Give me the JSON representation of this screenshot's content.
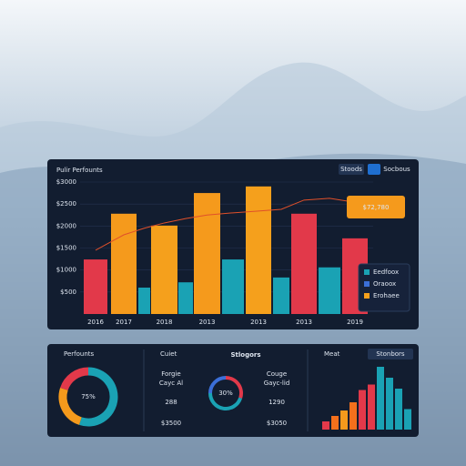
{
  "header": {
    "title": "Pulir Perfounts",
    "buttons": [
      "Stoods",
      "Socbous"
    ]
  },
  "chart_data": [
    {
      "type": "bar",
      "categories": [
        "2016",
        "2017",
        null,
        "2018",
        null,
        "2013",
        null,
        "2013",
        null,
        "2013",
        null,
        "2019"
      ],
      "values": [
        1240,
        2280,
        600,
        2010,
        720,
        2750,
        1240,
        2900,
        830,
        2280,
        1060,
        1720
      ],
      "colors": [
        "#e2394a",
        "#f59a1c",
        "#1aa2b4",
        "#f5a01c",
        "#1aa2b4",
        "#f59a1c",
        "#1aa2b4",
        "#f5a01c",
        "#1aa2b4",
        "#e2394a",
        "#1aa2b4",
        "#e2394a"
      ],
      "ylim": [
        0,
        3000
      ],
      "yticks": [
        {
          "value": 500,
          "label": "$500"
        },
        {
          "value": 1000,
          "label": "$1000"
        },
        {
          "value": 1500,
          "label": "$1500"
        },
        {
          "value": 2000,
          "label": "$2000"
        },
        {
          "value": 2500,
          "label": "$2500"
        },
        {
          "value": 3000,
          "label": "$3000"
        }
      ],
      "grid": true,
      "line": {
        "color": "#e0502a",
        "values": [
          1450,
          1800,
          1950,
          2070,
          2170,
          2250,
          2300,
          2340,
          2380,
          2590,
          2630,
          2540
        ]
      },
      "annotation": "$72,780",
      "legend": [
        {
          "name": "Eedfoox",
          "color": "#1aa2b4"
        },
        {
          "name": "Oraoox",
          "color": "#3b6fd8"
        },
        {
          "name": "Erohaee",
          "color": "#f5a01c"
        }
      ]
    },
    {
      "type": "pie",
      "title": "Perfounts",
      "values": [
        55,
        25,
        20
      ],
      "colors": [
        "#1aa2b4",
        "#f59a1c",
        "#e2394a"
      ],
      "center_label": "75%"
    },
    {
      "type": "pie",
      "title": "Cuiet",
      "values": [
        30,
        45,
        25
      ],
      "colors": [
        "#e2394a",
        "#1aa2b4",
        "#3b6fd8"
      ],
      "center_label": "30%"
    },
    {
      "type": "bar",
      "title": "Meat",
      "button": "Stonbors",
      "values": [
        12,
        20,
        28,
        40,
        58,
        66,
        92,
        76,
        60,
        30
      ],
      "colors": [
        "#e2394a",
        "#f5701c",
        "#f59a1c",
        "#f5701c",
        "#e2394a",
        "#e2394a",
        "#1aa2b4",
        "#1aa2b4",
        "#1aa2b4",
        "#1aa2b4"
      ],
      "ylim": [
        0,
        100
      ]
    }
  ],
  "stats": {
    "heading": "Stlogors",
    "left": {
      "labels": [
        "Forgie",
        "Cayc Al"
      ],
      "value": "288",
      "sub": "$3500"
    },
    "right": {
      "labels": [
        "Couge",
        "Gayc-lid"
      ],
      "value": "1290",
      "sub": "$3050"
    }
  }
}
